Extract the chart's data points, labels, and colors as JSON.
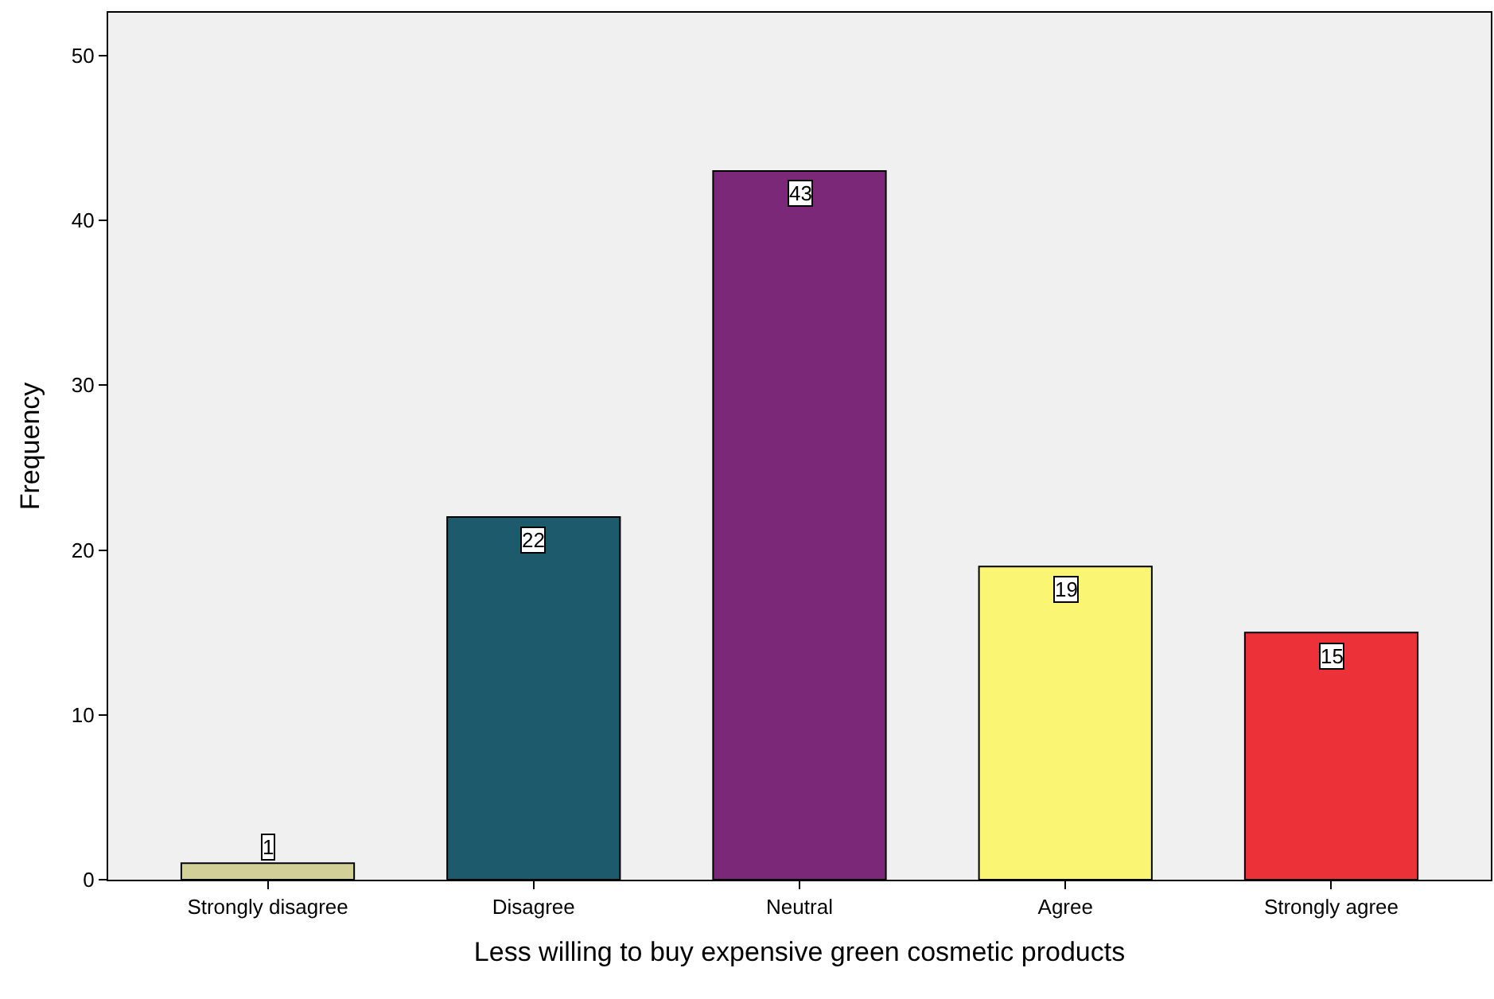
{
  "chart_data": {
    "type": "bar",
    "xlabel": "Less willing to buy expensive green cosmetic products",
    "ylabel": "Frequency",
    "categories": [
      "Strongly disagree",
      "Disagree",
      "Neutral",
      "Agree",
      "Strongly agree"
    ],
    "values": [
      1,
      22,
      43,
      19,
      15
    ],
    "colors": [
      "#d3cf98",
      "#1d5a6c",
      "#7b2879",
      "#faf673",
      "#ec3238"
    ],
    "ylim": [
      0,
      52.6
    ],
    "yticks": [
      0,
      10,
      20,
      30,
      40,
      50
    ],
    "grid": false,
    "legend": false,
    "data_labels": true
  }
}
